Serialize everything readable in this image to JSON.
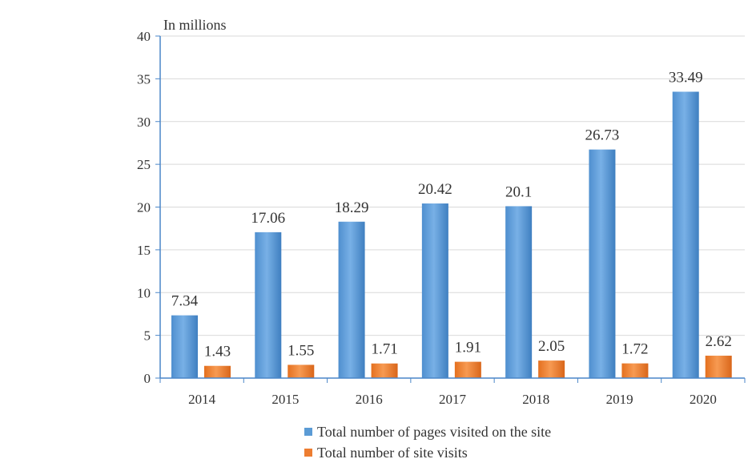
{
  "chart_data": {
    "type": "bar",
    "ylabel": "In millions",
    "ylim": [
      0,
      40
    ],
    "yticks": [
      0,
      5,
      10,
      15,
      20,
      25,
      30,
      35,
      40
    ],
    "categories": [
      "2014",
      "2015",
      "2016",
      "2017",
      "2018",
      "2019",
      "2020"
    ],
    "grid": true,
    "legend_position": "bottom",
    "series": [
      {
        "name": "Total number of pages visited on the site",
        "values": [
          7.34,
          17.06,
          18.29,
          20.42,
          20.1,
          26.73,
          33.49
        ],
        "color": "#5b9bd5"
      },
      {
        "name": "Total number of site visits",
        "values": [
          1.43,
          1.55,
          1.71,
          1.91,
          2.05,
          1.72,
          2.62
        ],
        "color": "#ed7d31"
      }
    ]
  }
}
